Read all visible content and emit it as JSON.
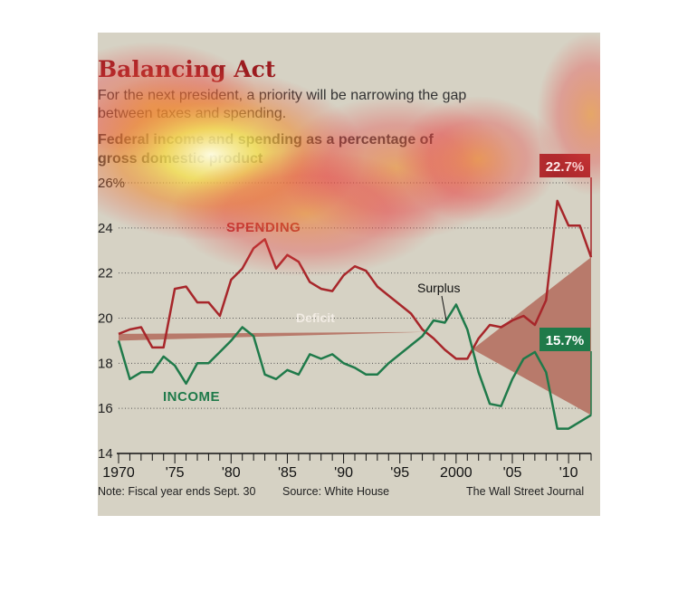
{
  "header": {
    "title": "Balancing Act",
    "subtitle": "For the next president, a priority will be narrowing the gap between taxes and spending.",
    "description": "Federal income and spending as a percentage of gross domestic product"
  },
  "footer": {
    "note": "Note: Fiscal year ends Sept. 30",
    "source": "Source: White House",
    "credit": "The Wall Street Journal"
  },
  "colors": {
    "spending": "#a7262a",
    "income": "#1f7a4a",
    "deficit_fill": "#b87a6b",
    "surplus_fill": "#7e9a74",
    "background": "#d6d2c4"
  },
  "chart_data": {
    "type": "area",
    "title": "",
    "xlabel": "",
    "ylabel": "",
    "x": [
      1970,
      1971,
      1972,
      1973,
      1974,
      1975,
      1976,
      1977,
      1978,
      1979,
      1980,
      1981,
      1982,
      1983,
      1984,
      1985,
      1986,
      1987,
      1988,
      1989,
      1990,
      1991,
      1992,
      1993,
      1994,
      1995,
      1996,
      1997,
      1998,
      1999,
      2000,
      2001,
      2002,
      2003,
      2004,
      2005,
      2006,
      2007,
      2008,
      2009,
      2010,
      2011,
      2012
    ],
    "series": [
      {
        "name": "SPENDING",
        "values": [
          19.3,
          19.5,
          19.6,
          18.7,
          18.7,
          21.3,
          21.4,
          20.7,
          20.7,
          20.1,
          21.7,
          22.2,
          23.1,
          23.5,
          22.2,
          22.8,
          22.5,
          21.6,
          21.3,
          21.2,
          21.9,
          22.3,
          22.1,
          21.4,
          21.0,
          20.6,
          20.2,
          19.5,
          19.1,
          18.6,
          18.2,
          18.2,
          19.1,
          19.7,
          19.6,
          19.9,
          20.1,
          19.7,
          20.8,
          25.2,
          24.1,
          24.1,
          22.7
        ]
      },
      {
        "name": "INCOME",
        "values": [
          19.0,
          17.3,
          17.6,
          17.6,
          18.3,
          17.9,
          17.1,
          18.0,
          18.0,
          18.5,
          19.0,
          19.6,
          19.2,
          17.5,
          17.3,
          17.7,
          17.5,
          18.4,
          18.2,
          18.4,
          18.0,
          17.8,
          17.5,
          17.5,
          18.0,
          18.4,
          18.8,
          19.2,
          19.9,
          19.8,
          20.6,
          19.5,
          17.6,
          16.2,
          16.1,
          17.3,
          18.2,
          18.5,
          17.6,
          15.1,
          15.1,
          15.4,
          15.7
        ]
      }
    ],
    "ylim": [
      14,
      26
    ],
    "yticks": [
      14,
      16,
      18,
      20,
      22,
      24,
      26
    ],
    "ytick_labels": [
      "14",
      "16",
      "18",
      "20",
      "22",
      "24",
      "26%"
    ],
    "xticks": [
      1970,
      1975,
      1980,
      1985,
      1990,
      1995,
      2000,
      2005,
      2010
    ],
    "xtick_labels": [
      "1970",
      "'75",
      "'80",
      "'85",
      "'90",
      "'95",
      "2000",
      "'05",
      "'10"
    ],
    "annotations": {
      "deficit": "Deficit",
      "surplus": "Surplus",
      "spending_end": "22.7%",
      "income_end": "15.7%"
    },
    "grid": "horizontal dotted"
  }
}
